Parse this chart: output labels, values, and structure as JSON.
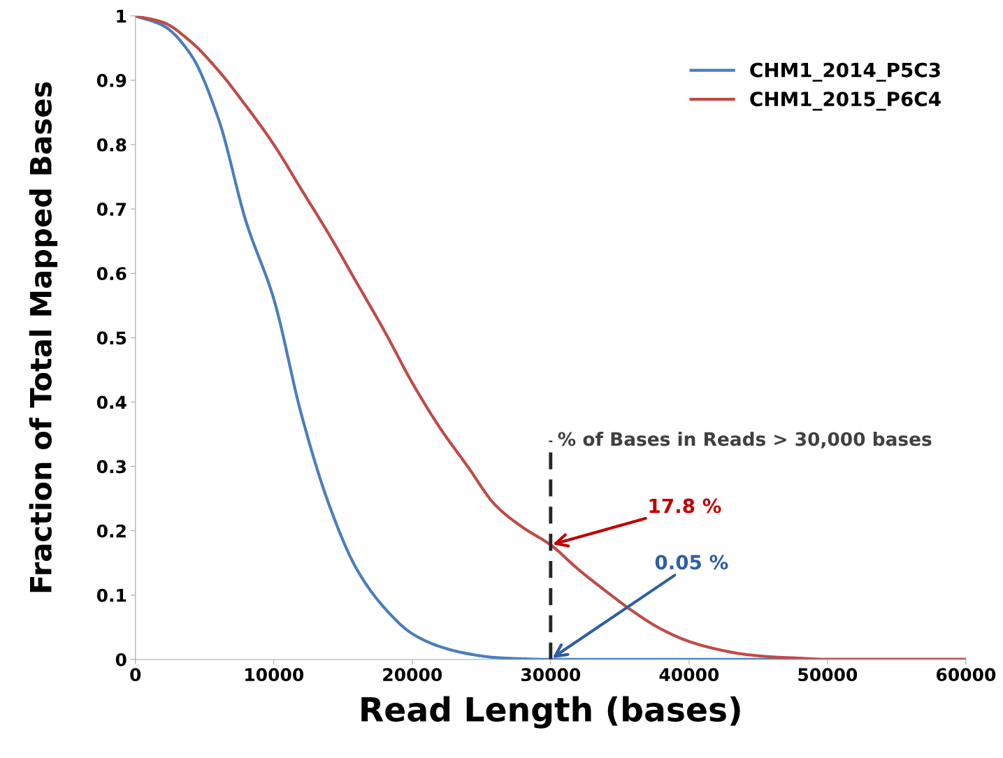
{
  "chart_data": {
    "type": "line",
    "xlabel": "Read Length (bases)",
    "ylabel": "Fraction of Total Mapped Bases",
    "xlim": [
      0,
      60000
    ],
    "xticks": [
      0,
      10000,
      20000,
      30000,
      40000,
      50000,
      60000
    ],
    "ylim": [
      0,
      1
    ],
    "yticks": [
      0,
      0.1,
      0.2,
      0.3,
      0.4,
      0.5,
      0.6,
      0.7,
      0.8,
      0.9,
      1
    ],
    "grid": false,
    "legend": "top right",
    "line_style": "solid",
    "marker": "none",
    "series": [
      {
        "name": "CHM1_2014_P5C3",
        "color": "#4a7ebb",
        "x": [
          0,
          2000,
          4000,
          6000,
          8000,
          10000,
          12000,
          14000,
          16000,
          18000,
          20000,
          22000,
          24000,
          26000,
          28000,
          30000,
          40000,
          50000,
          60000
        ],
        "values": [
          1.0,
          0.985,
          0.94,
          0.84,
          0.68,
          0.56,
          0.38,
          0.24,
          0.14,
          0.08,
          0.04,
          0.02,
          0.009,
          0.003,
          0.001,
          0,
          0,
          0,
          0
        ]
      },
      {
        "name": "CHM1_2015_P6C4",
        "color": "#be4b48",
        "x": [
          0,
          2000,
          4000,
          6000,
          8000,
          10000,
          12000,
          14000,
          16000,
          18000,
          20000,
          22000,
          24000,
          26000,
          28000,
          30000,
          32000,
          34000,
          36000,
          38000,
          40000,
          42000,
          44000,
          46000,
          48000,
          50000,
          55000,
          60000
        ],
        "values": [
          1.0,
          0.99,
          0.96,
          0.915,
          0.86,
          0.8,
          0.73,
          0.66,
          0.585,
          0.51,
          0.43,
          0.36,
          0.3,
          0.24,
          0.205,
          0.178,
          0.14,
          0.106,
          0.074,
          0.047,
          0.028,
          0.016,
          0.008,
          0.004,
          0.002,
          0,
          0,
          0
        ]
      }
    ],
    "ref_lines": [
      {
        "axis": "x",
        "value": 30000,
        "label": "% of Bases in Reads > 30,000 bases",
        "color": "#262626",
        "line_style": "dashed"
      }
    ],
    "annotations": [
      {
        "text": "17.8 %",
        "x": 30000,
        "y": 0.178
      },
      {
        "text": "0.05 %",
        "x": 30000,
        "y": 0.0005
      }
    ]
  }
}
